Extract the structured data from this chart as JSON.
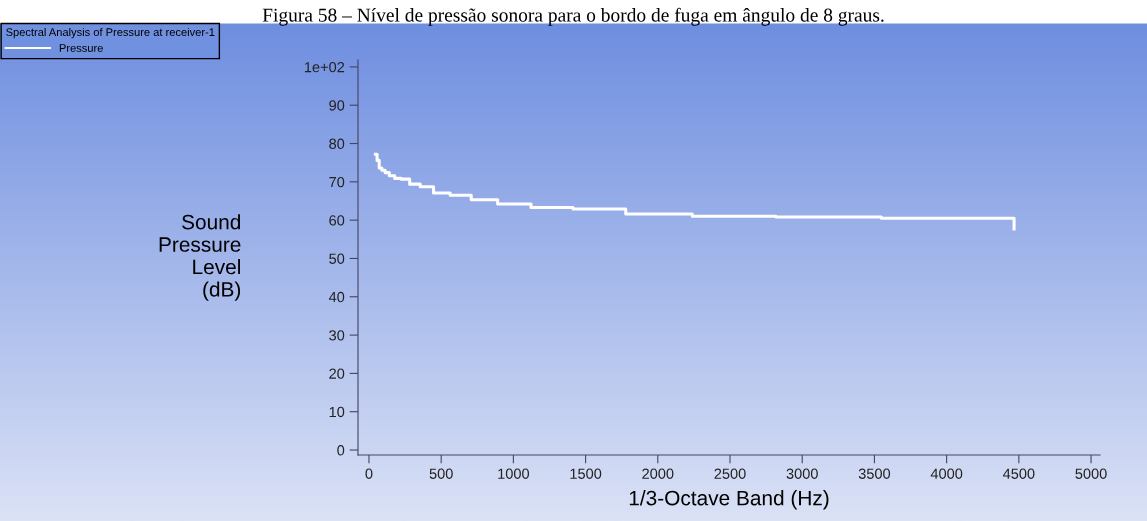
{
  "chart_data": {
    "type": "step",
    "title": "Figura 58 – Nível de pressão sonora para o bordo de fuga em ângulo de 8 graus.",
    "legend_title": "Spectral Analysis of Pressure at receiver-1",
    "xlabel": "1/3-Octave Band (Hz)",
    "ylabel": "Sound\nPressure\nLevel\n(dB)",
    "x": [
      44.7,
      56.2,
      70.8,
      89.1,
      112,
      141,
      178,
      224,
      282,
      355,
      447,
      562,
      708,
      891,
      1122,
      1413,
      1778,
      2239,
      2818,
      3548,
      4467
    ],
    "series": [
      {
        "name": "Pressure",
        "color": "#ffffff",
        "values": [
          77.2,
          75.6,
          73.6,
          73.0,
          72.4,
          71.6,
          70.9,
          70.7,
          69.4,
          68.7,
          67.1,
          66.5,
          65.3,
          64.2,
          63.3,
          62.9,
          61.6,
          61.0,
          60.8,
          60.5,
          57.7
        ]
      }
    ],
    "xlim": [
      -76,
      5062
    ],
    "ylim": [
      -1.3,
      101.8
    ],
    "xticks": [
      0,
      500,
      1000,
      1500,
      2000,
      2500,
      3000,
      3500,
      4000,
      4500,
      5000
    ],
    "yticks": [
      0,
      10,
      20,
      30,
      40,
      50,
      60,
      70,
      80,
      90,
      {
        "value": 100,
        "label": "1e+02"
      }
    ],
    "grid": false,
    "legend": "top left",
    "marker": "none",
    "line_style": "solid"
  }
}
